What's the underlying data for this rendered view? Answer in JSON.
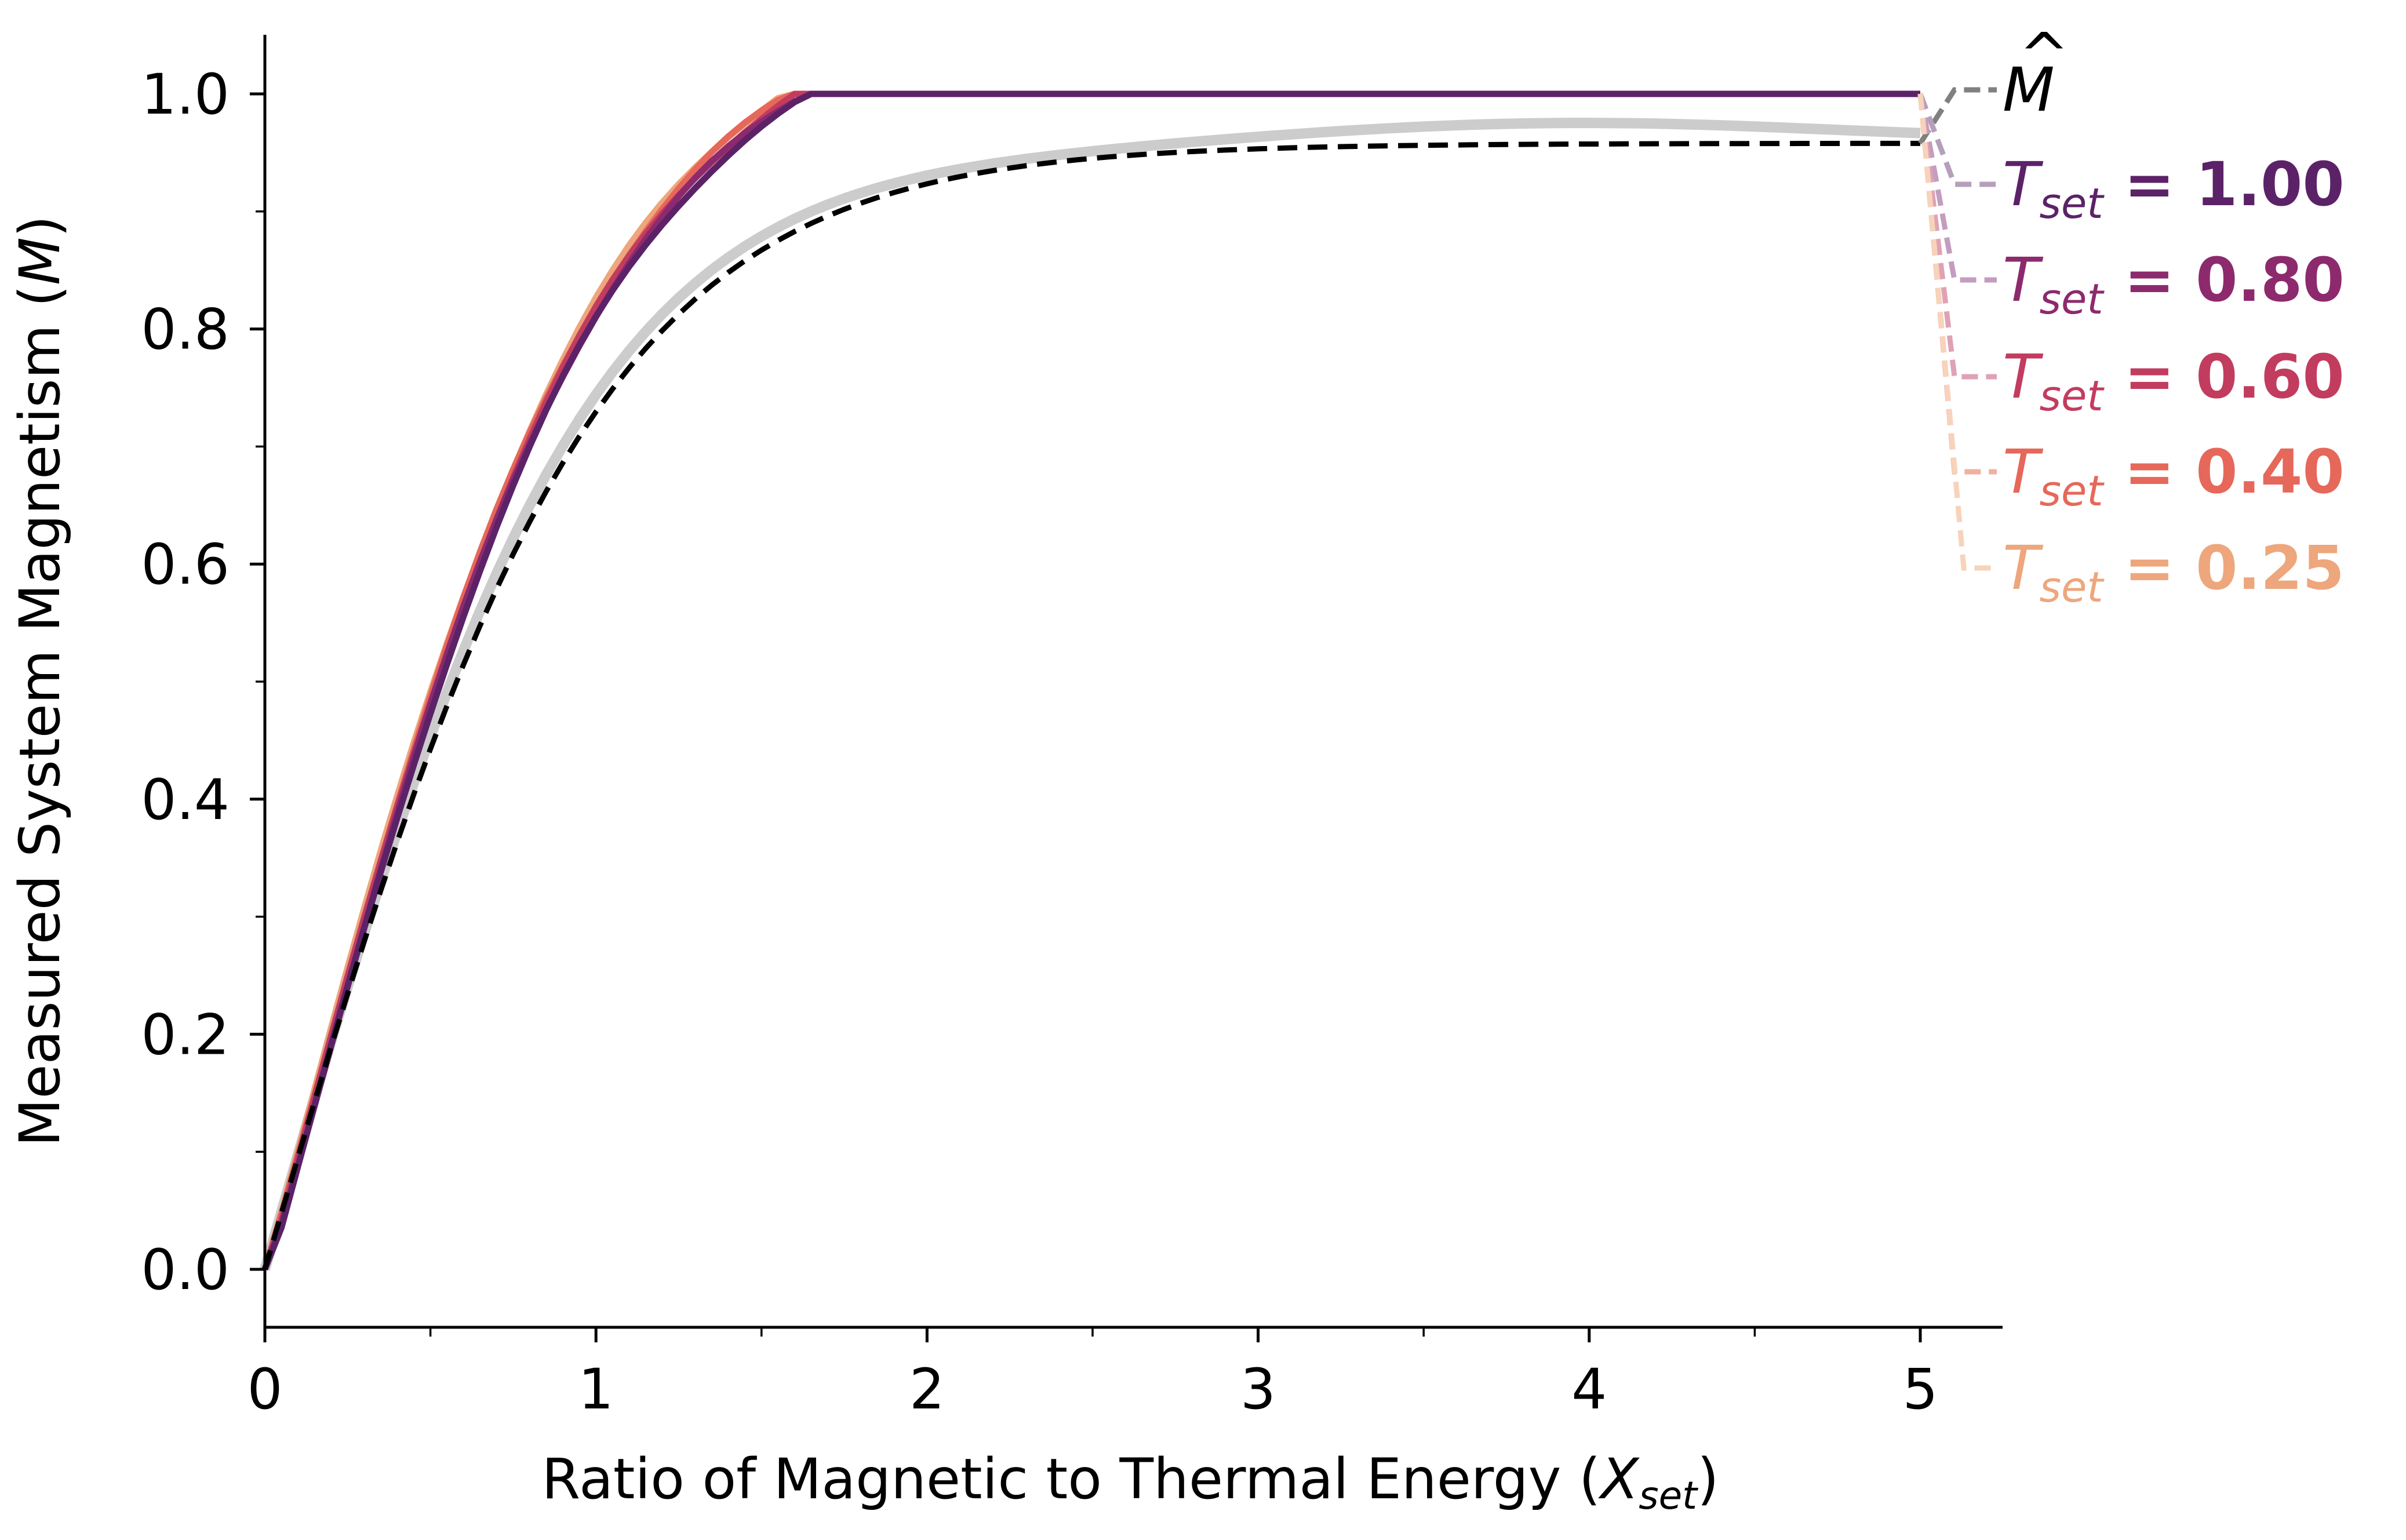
{
  "chart_data": {
    "type": "line",
    "title": "",
    "xlabel": {
      "main": "Ratio of Magnetic to Thermal Energy (",
      "var": "X",
      "sub": "set",
      "tail": ")"
    },
    "ylabel": {
      "main": "Measured System Magnetism (",
      "var": "M",
      "tail": ")"
    },
    "xlim": [
      0,
      5.25
    ],
    "ylim": [
      -0.05,
      1.05
    ],
    "xticks": [
      0,
      1,
      2,
      3,
      4,
      5
    ],
    "xtick_labels": [
      "0",
      "1",
      "2",
      "3",
      "4",
      "5"
    ],
    "yticks": [
      0.0,
      0.2,
      0.4,
      0.6,
      0.8,
      1.0
    ],
    "ytick_labels": [
      "0.0",
      "0.2",
      "0.4",
      "0.6",
      "0.8",
      "1.0"
    ],
    "grid": false,
    "legend_placement": "right",
    "x_range": [
      0,
      5
    ],
    "theory": {
      "label_var": "M",
      "label_hat": "^",
      "description": "tanh",
      "color": "#000000",
      "label_color": "#000000",
      "leader_color": "#808080"
    },
    "series": [
      {
        "var": "T",
        "sub": "set",
        "value": "1.00",
        "T": 1.0,
        "color": "#5c2268",
        "leader": "#b5a0bb"
      },
      {
        "var": "T",
        "sub": "set",
        "value": "0.80",
        "T": 0.8,
        "color": "#8d2a6e",
        "leader": "#c39dbf"
      },
      {
        "var": "T",
        "sub": "set",
        "value": "0.60",
        "T": 0.6,
        "color": "#c23c5f",
        "leader": "#dfa2b4"
      },
      {
        "var": "T",
        "sub": "set",
        "value": "0.40",
        "T": 0.4,
        "color": "#e6685a",
        "leader": "#f2b09f"
      },
      {
        "var": "T",
        "sub": "set",
        "value": "0.25",
        "T": 0.25,
        "color": "#eea67c",
        "leader": "#f7d3bb"
      }
    ]
  }
}
